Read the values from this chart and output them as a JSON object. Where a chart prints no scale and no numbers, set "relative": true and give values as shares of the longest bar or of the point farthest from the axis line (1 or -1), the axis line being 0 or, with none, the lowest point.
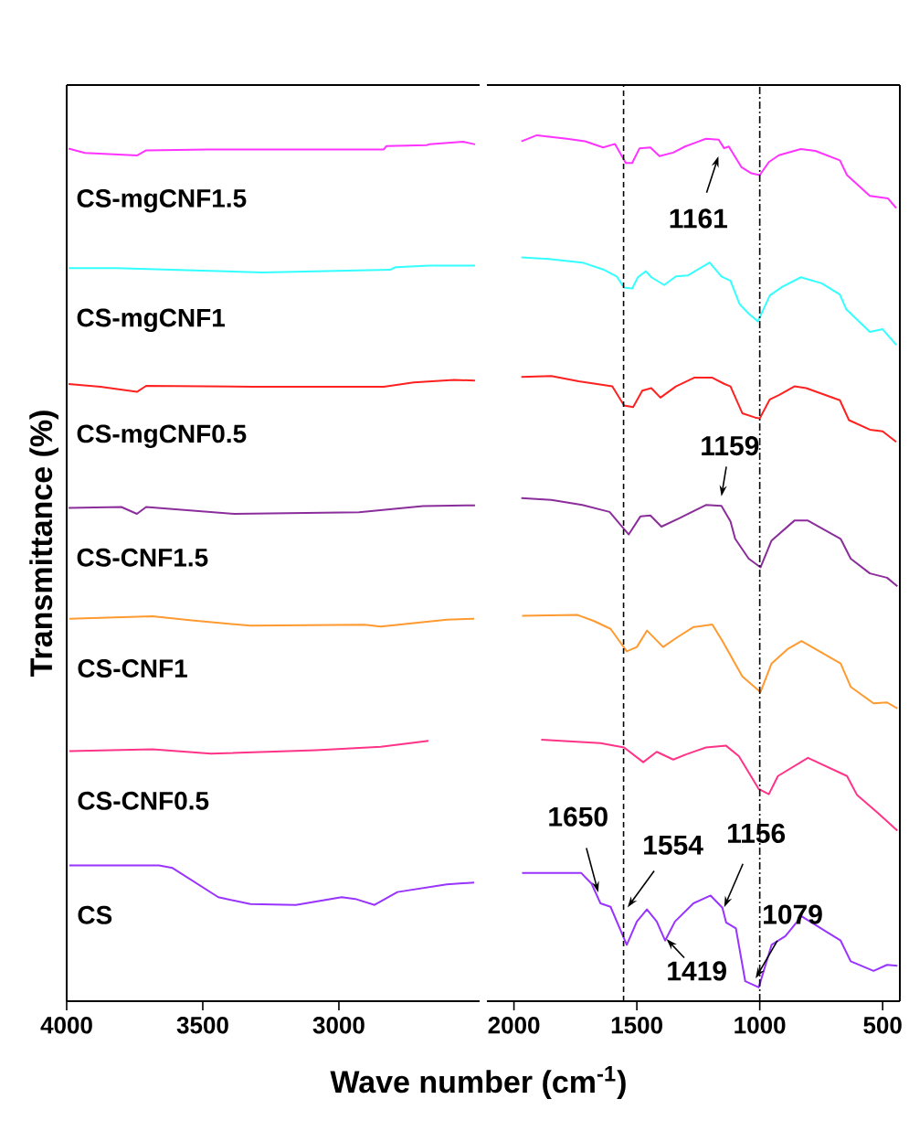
{
  "chart_data": [
    {
      "type": "line",
      "relative": true,
      "ylabel": "Transmittance (%)",
      "xlim": [
        4000,
        2483
      ],
      "xticks": [
        4000,
        3500,
        3000
      ],
      "series": [
        {
          "name": "CS-mgCNF1.5",
          "color": "#ff33ff",
          "x": [
            3993,
            3933,
            3742,
            3708,
            3483,
            2835,
            2825,
            2678,
            2668,
            2543,
            2500
          ],
          "values": [
            0.992,
            0.987,
            0.984,
            0.99,
            0.991,
            0.991,
            0.995,
            0.996,
            0.997,
            1.0,
            0.997
          ]
        },
        {
          "name": "CS-mgCNF1",
          "color": "#33ffff",
          "x": [
            3993,
            3819,
            3282,
            2812,
            2792,
            2668,
            2500
          ],
          "values": [
            0.853,
            0.853,
            0.848,
            0.851,
            0.854,
            0.856,
            0.856
          ]
        },
        {
          "name": "CS-mgCNF0.5",
          "color": "#ff2020",
          "x": [
            3993,
            3876,
            3742,
            3708,
            3315,
            2835,
            2725,
            2577,
            2500
          ],
          "values": [
            0.718,
            0.715,
            0.709,
            0.716,
            0.715,
            0.715,
            0.72,
            0.723,
            0.722
          ]
        },
        {
          "name": "CS-CNF1.5",
          "color": "#8b2d9b",
          "x": [
            3993,
            3799,
            3742,
            3708,
            3383,
            2926,
            2691,
            2500
          ],
          "values": [
            0.574,
            0.575,
            0.567,
            0.575,
            0.567,
            0.569,
            0.576,
            0.577
          ]
        },
        {
          "name": "CS-CNF1",
          "color": "#ff9a30",
          "x": [
            3990,
            3685,
            3540,
            3325,
            2906,
            2846,
            2604,
            2503
          ],
          "values": [
            0.445,
            0.448,
            0.443,
            0.437,
            0.438,
            0.436,
            0.444,
            0.445
          ]
        },
        {
          "name": "CS-CNF0.5",
          "color": "#ff3388",
          "x": [
            3990,
            3685,
            3470,
            3084,
            2846,
            2671
          ],
          "values": [
            0.291,
            0.293,
            0.288,
            0.292,
            0.296,
            0.303
          ]
        },
        {
          "name": "CS",
          "color": "#9933ff",
          "x": [
            3990,
            3661,
            3611,
            3443,
            3325,
            3158,
            2990,
            2940,
            2869,
            2785,
            2604,
            2503
          ],
          "values": [
            0.158,
            0.158,
            0.155,
            0.121,
            0.113,
            0.112,
            0.121,
            0.119,
            0.112,
            0.127,
            0.136,
            0.138
          ]
        }
      ]
    },
    {
      "type": "line",
      "relative": true,
      "xlabel": "Wave number (cm$^{-1}$)",
      "xlim": [
        2110,
        430
      ],
      "xticks": [
        2000,
        1500,
        1000,
        500
      ],
      "ref_lines": [
        {
          "axis": "x",
          "value": 1554,
          "color": "#000000",
          "line_style": "dashed"
        },
        {
          "axis": "x",
          "value": 1000,
          "color": "#000000",
          "line_style": "dashdot"
        }
      ],
      "annotations": [
        {
          "text": "1161",
          "x": 1161,
          "y": 0.982
        },
        {
          "text": "1159",
          "x": 1159,
          "y": 0.578
        },
        {
          "text": "1650",
          "x": 1650,
          "y": 0.118
        },
        {
          "text": "1554",
          "x": 1554,
          "y": 0.102
        },
        {
          "text": "1156",
          "x": 1156,
          "y": 0.101
        },
        {
          "text": "1079",
          "x": 1030,
          "y": 0.02
        },
        {
          "text": "1419",
          "x": 1390,
          "y": 0.075
        }
      ],
      "series": [
        {
          "color": "#ff33ff",
          "x": [
            1970,
            1907,
            1785,
            1711,
            1637,
            1589,
            1545,
            1519,
            1489,
            1445,
            1408,
            1352,
            1304,
            1219,
            1167,
            1145,
            1126,
            1074,
            1034,
            1000,
            963,
            922,
            833,
            774,
            674,
            645,
            552,
            478,
            445
          ],
          "values": [
            0.993,
            1.0,
            0.996,
            0.993,
            0.986,
            0.99,
            0.968,
            0.968,
            0.985,
            0.986,
            0.976,
            0.98,
            0.987,
            0.996,
            0.995,
            0.985,
            0.987,
            0.963,
            0.956,
            0.954,
            0.969,
            0.977,
            0.984,
            0.982,
            0.971,
            0.954,
            0.93,
            0.927,
            0.916
          ]
        },
        {
          "color": "#33ffff",
          "x": [
            1970,
            1859,
            1722,
            1637,
            1582,
            1552,
            1519,
            1496,
            1463,
            1441,
            1389,
            1341,
            1293,
            1204,
            1156,
            1119,
            1082,
            1045,
            1008,
            959,
            908,
            833,
            748,
            674,
            648,
            552,
            500,
            445
          ],
          "values": [
            0.859,
            0.857,
            0.853,
            0.845,
            0.837,
            0.824,
            0.823,
            0.836,
            0.843,
            0.836,
            0.827,
            0.837,
            0.838,
            0.853,
            0.837,
            0.832,
            0.805,
            0.794,
            0.785,
            0.815,
            0.825,
            0.836,
            0.829,
            0.816,
            0.799,
            0.773,
            0.776,
            0.758
          ]
        },
        {
          "color": "#ff2020",
          "x": [
            1970,
            1848,
            1737,
            1600,
            1552,
            1515,
            1478,
            1441,
            1404,
            1341,
            1267,
            1193,
            1145,
            1119,
            1071,
            1019,
            1000,
            959,
            922,
            859,
            811,
            674,
            637,
            552,
            500,
            445
          ],
          "values": [
            0.721,
            0.722,
            0.716,
            0.71,
            0.688,
            0.686,
            0.705,
            0.708,
            0.697,
            0.71,
            0.72,
            0.72,
            0.713,
            0.71,
            0.679,
            0.674,
            0.673,
            0.695,
            0.7,
            0.71,
            0.708,
            0.694,
            0.671,
            0.66,
            0.658,
            0.646
          ]
        },
        {
          "color": "#8b2d9b",
          "x": [
            1970,
            1848,
            1722,
            1611,
            1563,
            1533,
            1485,
            1445,
            1400,
            1326,
            1219,
            1156,
            1119,
            1100,
            1045,
            997,
            952,
            859,
            804,
            671,
            630,
            552,
            482,
            440
          ],
          "values": [
            0.581,
            0.579,
            0.573,
            0.565,
            0.549,
            0.539,
            0.56,
            0.561,
            0.548,
            0.558,
            0.573,
            0.572,
            0.554,
            0.534,
            0.511,
            0.501,
            0.532,
            0.555,
            0.555,
            0.534,
            0.511,
            0.494,
            0.489,
            0.479
          ]
        },
        {
          "color": "#ff9a30",
          "x": [
            1967,
            1741,
            1674,
            1607,
            1541,
            1500,
            1459,
            1393,
            1337,
            1270,
            1193,
            1152,
            1071,
            997,
            952,
            885,
            830,
            671,
            630,
            537,
            482,
            440
          ],
          "values": [
            0.445,
            0.446,
            0.439,
            0.43,
            0.404,
            0.409,
            0.428,
            0.409,
            0.42,
            0.432,
            0.435,
            0.416,
            0.375,
            0.357,
            0.39,
            0.407,
            0.416,
            0.39,
            0.363,
            0.344,
            0.345,
            0.338
          ]
        },
        {
          "color": "#ff3388",
          "x": [
            1889,
            1648,
            1552,
            1474,
            1419,
            1352,
            1300,
            1219,
            1137,
            1085,
            1004,
            963,
            926,
            804,
            645,
            604,
            522,
            440
          ],
          "values": [
            0.302,
            0.298,
            0.293,
            0.276,
            0.288,
            0.279,
            0.285,
            0.293,
            0.295,
            0.283,
            0.245,
            0.239,
            0.26,
            0.281,
            0.26,
            0.238,
            0.218,
            0.197
          ]
        },
        {
          "color": "#9933ff",
          "x": [
            1967,
            1726,
            1685,
            1648,
            1607,
            1541,
            1500,
            1459,
            1419,
            1385,
            1345,
            1270,
            1200,
            1152,
            1137,
            1097,
            1059,
            1004,
            952,
            896,
            830,
            671,
            630,
            537,
            482,
            440
          ],
          "values": [
            0.148,
            0.148,
            0.136,
            0.113,
            0.109,
            0.065,
            0.092,
            0.106,
            0.092,
            0.07,
            0.092,
            0.113,
            0.122,
            0.108,
            0.091,
            0.084,
            0.023,
            0.016,
            0.065,
            0.075,
            0.098,
            0.07,
            0.046,
            0.035,
            0.042,
            0.041
          ]
        }
      ]
    }
  ]
}
